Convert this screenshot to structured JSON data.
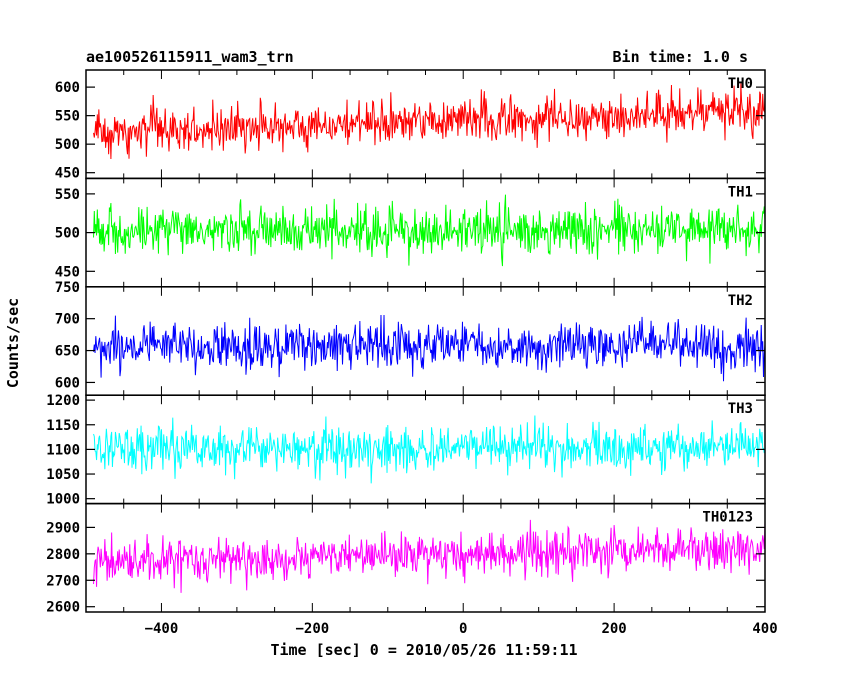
{
  "chart_data": {
    "type": "line",
    "title": "ae100526115911_wam3_trn",
    "subtitle": "Bin time: 1.0 s",
    "xlabel": "Time [sec] 0 = 2010/05/26 11:59:11",
    "ylabel": "Counts/sec",
    "xlim": [
      -500,
      400
    ],
    "x_ticks": [
      -400,
      -200,
      0,
      200,
      400
    ],
    "x_tick_labels": [
      "−400",
      "−200",
      "0",
      "200",
      "400"
    ],
    "data_range": [
      -490,
      400
    ],
    "grid": false,
    "legend": "none",
    "series": [
      {
        "name": "TH0",
        "color": "#ff0000",
        "ylim": [
          440,
          630
        ],
        "y_ticks": [
          450,
          500,
          550,
          600
        ],
        "y_tick_labels": [
          "450",
          "500",
          "550",
          "600"
        ],
        "mean_start": 520,
        "mean_end": 560,
        "noise": 32,
        "min_shown": 440,
        "max_shown": 630
      },
      {
        "name": "TH1",
        "color": "#00ff00",
        "ylim": [
          430,
          570
        ],
        "y_ticks": [
          450,
          500,
          550
        ],
        "y_tick_labels": [
          "450",
          "500",
          "550"
        ],
        "mean_start": 500,
        "mean_end": 505,
        "noise": 26,
        "min_shown": 430,
        "max_shown": 570
      },
      {
        "name": "TH2",
        "color": "#0000ff",
        "ylim": [
          580,
          750
        ],
        "y_ticks": [
          600,
          650,
          700,
          750
        ],
        "y_tick_labels": [
          "600",
          "650",
          "700",
          "750"
        ],
        "mean_start": 655,
        "mean_end": 660,
        "noise": 30,
        "min_shown": 580,
        "max_shown": 750
      },
      {
        "name": "TH3",
        "color": "#00ffff",
        "ylim": [
          990,
          1210
        ],
        "y_ticks": [
          1000,
          1050,
          1100,
          1150,
          1200
        ],
        "y_tick_labels": [
          "1000",
          "1050",
          "1100",
          "1150",
          "1200"
        ],
        "mean_start": 1100,
        "mean_end": 1105,
        "noise": 40,
        "min_shown": 990,
        "max_shown": 1210
      },
      {
        "name": "TH0123",
        "color": "#ff00ff",
        "ylim": [
          2580,
          2990
        ],
        "y_ticks": [
          2600,
          2700,
          2800,
          2900
        ],
        "y_tick_labels": [
          "2600",
          "2700",
          "2800",
          "2900"
        ],
        "mean_start": 2770,
        "mean_end": 2820,
        "noise": 70,
        "min_shown": 2580,
        "max_shown": 2990
      }
    ]
  }
}
